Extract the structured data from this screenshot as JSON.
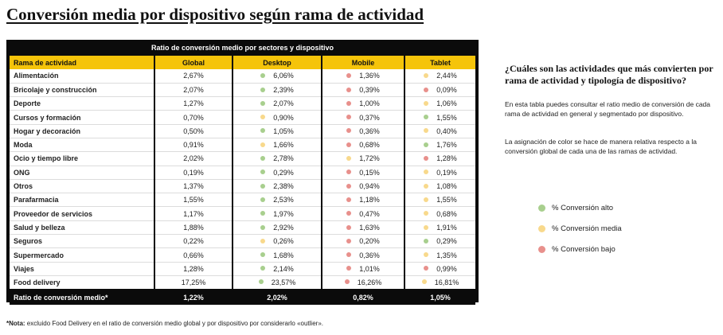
{
  "title": "Conversión media por dispositivo según rama de actividad",
  "table": {
    "caption": "Ratio de conversión medio por sectores y dispositivo",
    "headers": [
      "Rama de actividad",
      "Global",
      "Desktop",
      "Mobile",
      "Tablet"
    ],
    "rows": [
      {
        "rama": "Alimentación",
        "global": "2,67%",
        "desktop": "6,06%",
        "desktop_level": "alto",
        "mobile": "1,36%",
        "mobile_level": "bajo",
        "tablet": "2,44%",
        "tablet_level": "media"
      },
      {
        "rama": "Bricolaje y construcción",
        "global": "2,07%",
        "desktop": "2,39%",
        "desktop_level": "alto",
        "mobile": "0,39%",
        "mobile_level": "bajo",
        "tablet": "0,09%",
        "tablet_level": "bajo"
      },
      {
        "rama": "Deporte",
        "global": "1,27%",
        "desktop": "2,07%",
        "desktop_level": "alto",
        "mobile": "1,00%",
        "mobile_level": "bajo",
        "tablet": "1,06%",
        "tablet_level": "media"
      },
      {
        "rama": "Cursos y formación",
        "global": "0,70%",
        "desktop": "0,90%",
        "desktop_level": "media",
        "mobile": "0,37%",
        "mobile_level": "bajo",
        "tablet": "1,55%",
        "tablet_level": "alto"
      },
      {
        "rama": "Hogar y decoración",
        "global": "0,50%",
        "desktop": "1,05%",
        "desktop_level": "alto",
        "mobile": "0,36%",
        "mobile_level": "bajo",
        "tablet": "0,40%",
        "tablet_level": "media"
      },
      {
        "rama": "Moda",
        "global": "0,91%",
        "desktop": "1,66%",
        "desktop_level": "media",
        "mobile": "0,68%",
        "mobile_level": "bajo",
        "tablet": "1,76%",
        "tablet_level": "alto"
      },
      {
        "rama": "Ocio y tiempo libre",
        "global": "2,02%",
        "desktop": "2,78%",
        "desktop_level": "alto",
        "mobile": "1,72%",
        "mobile_level": "media",
        "tablet": "1,28%",
        "tablet_level": "bajo"
      },
      {
        "rama": "ONG",
        "global": "0,19%",
        "desktop": "0,29%",
        "desktop_level": "alto",
        "mobile": "0,15%",
        "mobile_level": "bajo",
        "tablet": "0,19%",
        "tablet_level": "media"
      },
      {
        "rama": "Otros",
        "global": "1,37%",
        "desktop": "2,38%",
        "desktop_level": "alto",
        "mobile": "0,94%",
        "mobile_level": "bajo",
        "tablet": "1,08%",
        "tablet_level": "media"
      },
      {
        "rama": "Parafarmacia",
        "global": "1,55%",
        "desktop": "2,53%",
        "desktop_level": "alto",
        "mobile": "1,18%",
        "mobile_level": "bajo",
        "tablet": "1,55%",
        "tablet_level": "media"
      },
      {
        "rama": "Proveedor de servicios",
        "global": "1,17%",
        "desktop": "1,97%",
        "desktop_level": "alto",
        "mobile": "0,47%",
        "mobile_level": "bajo",
        "tablet": "0,68%",
        "tablet_level": "media"
      },
      {
        "rama": "Salud y belleza",
        "global": "1,88%",
        "desktop": "2,92%",
        "desktop_level": "alto",
        "mobile": "1,63%",
        "mobile_level": "bajo",
        "tablet": "1,91%",
        "tablet_level": "media"
      },
      {
        "rama": "Seguros",
        "global": "0,22%",
        "desktop": "0,26%",
        "desktop_level": "media",
        "mobile": "0,20%",
        "mobile_level": "bajo",
        "tablet": "0,29%",
        "tablet_level": "alto"
      },
      {
        "rama": "Supermercado",
        "global": "0,66%",
        "desktop": "1,68%",
        "desktop_level": "alto",
        "mobile": "0,36%",
        "mobile_level": "bajo",
        "tablet": "1,35%",
        "tablet_level": "media"
      },
      {
        "rama": "Viajes",
        "global": "1,28%",
        "desktop": "2,14%",
        "desktop_level": "alto",
        "mobile": "1,01%",
        "mobile_level": "bajo",
        "tablet": "0,99%",
        "tablet_level": "bajo"
      },
      {
        "rama": "Food delivery",
        "global": "17,25%",
        "desktop": "23,57%",
        "desktop_level": "alto",
        "mobile": "16,26%",
        "mobile_level": "bajo",
        "tablet": "16,81%",
        "tablet_level": "media"
      }
    ],
    "footer": {
      "rama": "Ratio de conversión medio*",
      "global": "1,22%",
      "desktop": "2,02%",
      "mobile": "0,82%",
      "tablet": "1,05%"
    }
  },
  "sidebar": {
    "question": "¿Cuáles son las actividades que más convierten por rama de actividad y tipología de dispositivo?",
    "paragraph1": "En esta tabla puedes consultar el ratio medio de conversión de cada rama de actividad en general y segmentado por dispositivo.",
    "paragraph2": "La asignación de color se hace de manera relativa respecto a la conversión global de cada una de las ramas de actividad."
  },
  "legend": [
    {
      "label": "% Conversión alto",
      "level": "alto",
      "color": "#a8cf8e"
    },
    {
      "label": "% Conversión media",
      "level": "media",
      "color": "#f8d98c"
    },
    {
      "label": "% Conversión bajo",
      "level": "bajo",
      "color": "#e8908c"
    }
  ],
  "note": {
    "label": "*Nota:",
    "text": " excluido Food Delivery en el ratio de conversión medio global y por dispositivo por considerarlo «outlier»."
  }
}
